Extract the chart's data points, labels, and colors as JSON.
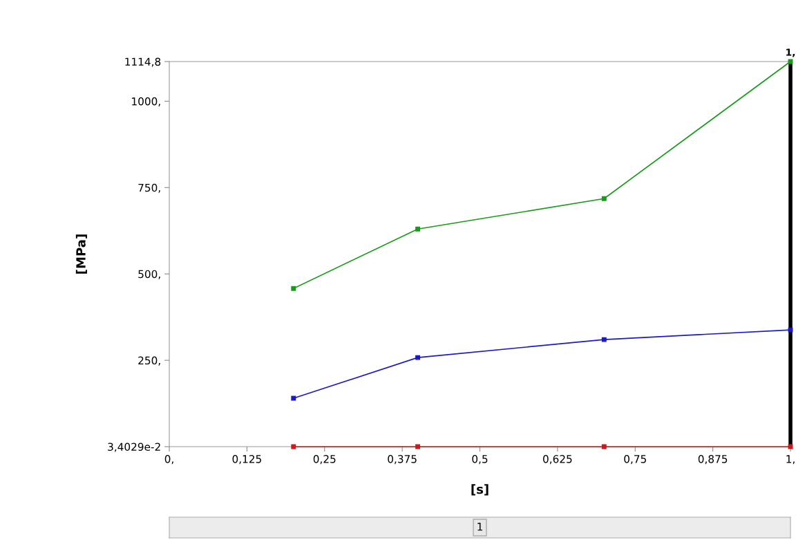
{
  "chart_data": {
    "type": "line",
    "xlabel": "[s]",
    "ylabel": "[MPa]",
    "x": [
      0.2,
      0.4,
      0.7,
      1
    ],
    "series": [
      {
        "color": "#1a9a1a",
        "values": [
          458,
          630,
          718,
          1114.8
        ]
      },
      {
        "color": "#1a1acc",
        "values": [
          140,
          258,
          310,
          338
        ]
      },
      {
        "color": "#cc1a1a",
        "values": [
          0.034029,
          0.034029,
          0.034029,
          0.034029
        ]
      }
    ],
    "xlim": [
      0,
      1
    ],
    "ylim": [
      0.034029,
      1114.8
    ],
    "xticks": [
      {
        "value": 0,
        "label": "0,"
      },
      {
        "value": 0.125,
        "label": "0,125"
      },
      {
        "value": 0.25,
        "label": "0,25"
      },
      {
        "value": 0.375,
        "label": "0,375"
      },
      {
        "value": 0.5,
        "label": "0,5"
      },
      {
        "value": 0.625,
        "label": "0,625"
      },
      {
        "value": 0.75,
        "label": "0,75"
      },
      {
        "value": 0.875,
        "label": "0,875"
      },
      {
        "value": 1,
        "label": "1,"
      }
    ],
    "yticks": [
      {
        "value": 0.034029,
        "label": "3,4029e-2"
      },
      {
        "value": 250,
        "label": "250,"
      },
      {
        "value": 500,
        "label": "500,"
      },
      {
        "value": 750,
        "label": "750,"
      },
      {
        "value": 1000,
        "label": "1000,"
      },
      {
        "value": 1114.8,
        "label": "1114,8"
      }
    ],
    "ref_lines": [
      {
        "axis": "x",
        "value": 1,
        "label": "1,",
        "color": "#000000"
      }
    ],
    "annotations": [
      "1"
    ],
    "marker": "square",
    "line_style": "solid",
    "grid": false,
    "legend": false
  }
}
